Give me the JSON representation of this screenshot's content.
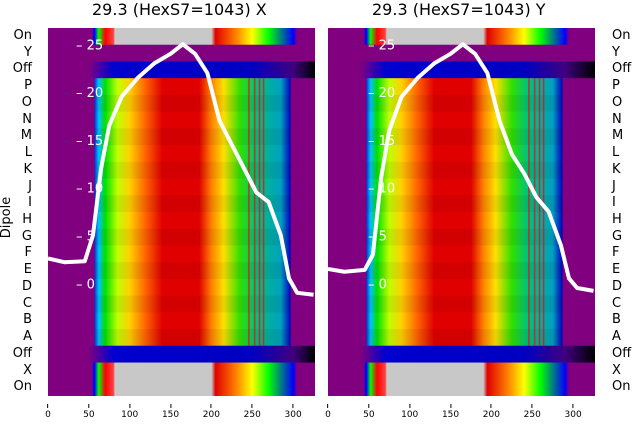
{
  "chart_data": [
    {
      "type": "heatmap",
      "title": "29.3 (HexS7=1043) X",
      "ylabel": "Dipole",
      "row_labels": [
        "On",
        "Y",
        "Off",
        "P",
        "O",
        "N",
        "M",
        "L",
        "K",
        "J",
        "I",
        "H",
        "G",
        "F",
        "E",
        "D",
        "C",
        "B",
        "A",
        "Off",
        "X",
        "On"
      ],
      "x_ticks": [
        0,
        50,
        100,
        150,
        200,
        250,
        300
      ],
      "xlim": [
        0,
        325
      ],
      "inner_y_ticks": [
        25,
        20,
        15,
        10,
        5,
        0
      ],
      "inner_ylim": [
        -11.8,
        26.7
      ],
      "overlay_line": {
        "x": [
          0,
          20,
          45,
          55,
          65,
          75,
          90,
          110,
          130,
          150,
          165,
          180,
          195,
          210,
          225,
          240,
          255,
          270,
          285,
          295,
          305,
          325
        ],
        "y": [
          2.6,
          2.2,
          2.3,
          5,
          12,
          16.5,
          19.5,
          21.5,
          23,
          24,
          25,
          24,
          22,
          17,
          14.5,
          12,
          9.5,
          8.5,
          5,
          0.5,
          -1,
          -1.2
        ]
      }
    },
    {
      "type": "heatmap",
      "title": "29.3 (HexS7=1043) Y",
      "row_labels": [
        "On",
        "Y",
        "Off",
        "P",
        "O",
        "N",
        "M",
        "L",
        "K",
        "J",
        "I",
        "H",
        "G",
        "F",
        "E",
        "D",
        "C",
        "B",
        "A",
        "Off",
        "X",
        "On"
      ],
      "x_ticks": [
        0,
        50,
        100,
        150,
        200,
        250,
        300
      ],
      "xlim": [
        0,
        325
      ],
      "inner_y_ticks": [
        25,
        20,
        15,
        10,
        5,
        0
      ],
      "inner_ylim": [
        -11.8,
        26.7
      ],
      "overlay_line": {
        "x": [
          0,
          20,
          45,
          55,
          65,
          75,
          90,
          110,
          130,
          150,
          165,
          180,
          195,
          210,
          225,
          240,
          255,
          270,
          285,
          295,
          305,
          325
        ],
        "y": [
          1.5,
          1.2,
          1.4,
          3,
          11,
          16,
          19.5,
          21.5,
          23,
          24,
          25,
          24,
          22,
          17,
          13.5,
          11.5,
          9,
          7.5,
          4,
          0.5,
          -0.5,
          -0.8
        ]
      }
    }
  ]
}
